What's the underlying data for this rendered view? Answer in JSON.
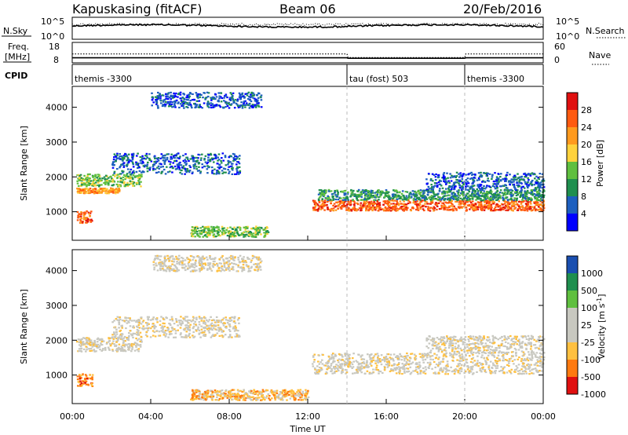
{
  "header": {
    "station": "Kapuskasing (fitACF)",
    "beam": "Beam 06",
    "date": "20/Feb/2016"
  },
  "colors": {
    "power_scale": [
      "#0000ff",
      "#1d5fbf",
      "#1f8f4f",
      "#5fbf3f",
      "#ffd23c",
      "#ff9a1e",
      "#ff5a10",
      "#e01010"
    ],
    "velocity_scale": [
      "#e01010",
      "#ff7a10",
      "#ffc040",
      "#c8c8c0",
      "#c8c8c0",
      "#5fbf3f",
      "#1f8f4f",
      "#1a4fb0"
    ],
    "ground_scatter": "#c8c8c0"
  },
  "chart_data": [
    {
      "type": "line",
      "panel": "noise",
      "left_label": "N.Sky",
      "right_label": "N.Search",
      "left_ticks": [
        "10^5",
        "10^0"
      ],
      "right_ticks": [
        "10^5",
        "10^0"
      ]
    },
    {
      "type": "line",
      "panel": "frequency",
      "left_label_top": "Freq.",
      "left_label_bottom": "[MHz]",
      "right_label": "Nave",
      "left_ticks": [
        "18",
        "8"
      ],
      "right_ticks": [
        "60",
        "0"
      ],
      "frequency_mhz": [
        {
          "t": 0,
          "v": 10.2
        },
        {
          "t": 14,
          "v": 10.2
        },
        {
          "t": 14.05,
          "v": 9.9
        },
        {
          "t": 20,
          "v": 9.9
        },
        {
          "t": 20.05,
          "v": 10.2
        },
        {
          "t": 24,
          "v": 10.2
        }
      ],
      "nave": [
        {
          "t": 0,
          "v": 28
        },
        {
          "t": 14,
          "v": 28
        },
        {
          "t": 14.05,
          "v": 14
        },
        {
          "t": 20,
          "v": 14
        },
        {
          "t": 20.05,
          "v": 28
        },
        {
          "t": 24,
          "v": 28
        }
      ]
    },
    {
      "type": "table",
      "panel": "cpid",
      "label": "CPID",
      "segments": [
        {
          "start": 0,
          "end": 14,
          "name": "themis -3300"
        },
        {
          "start": 14,
          "end": 20,
          "name": "tau (fost) 503"
        },
        {
          "start": 20,
          "end": 24,
          "name": "themis -3300"
        }
      ]
    },
    {
      "type": "heatmap",
      "panel": "power",
      "ylabel": "Slant Range [km]",
      "ylim": [
        180,
        4600
      ],
      "yticks": [
        1000,
        2000,
        3000,
        4000
      ],
      "colorbar_label": "Power [dB]",
      "colorbar_ticks": [
        "4",
        "8",
        "12",
        "16",
        "20",
        "24",
        "28"
      ],
      "scatter_bands": [
        {
          "t0": 0.2,
          "t1": 2.4,
          "r0": 1550,
          "r1": 1700,
          "level": 5
        },
        {
          "t0": 0.2,
          "t1": 3.5,
          "r0": 1750,
          "r1": 2100,
          "level": 3
        },
        {
          "t0": 2.0,
          "t1": 8.5,
          "r0": 2100,
          "r1": 2700,
          "level": 1
        },
        {
          "t0": 4.0,
          "t1": 9.6,
          "r0": 4000,
          "r1": 4450,
          "level": 1
        },
        {
          "t0": 0.2,
          "t1": 1.0,
          "r0": 700,
          "r1": 1050,
          "level": 6
        },
        {
          "t0": 12.2,
          "t1": 24,
          "r0": 1050,
          "r1": 1350,
          "level": 6
        },
        {
          "t0": 12.5,
          "t1": 24,
          "r0": 1350,
          "r1": 1650,
          "level": 2
        },
        {
          "t0": 18.0,
          "t1": 24,
          "r0": 1650,
          "r1": 2150,
          "level": 1
        },
        {
          "t0": 6.0,
          "t1": 10.0,
          "r0": 300,
          "r1": 600,
          "level": 3
        }
      ]
    },
    {
      "type": "heatmap",
      "panel": "velocity",
      "ylabel": "Slant Range [km]",
      "ylim": [
        180,
        4600
      ],
      "yticks": [
        1000,
        2000,
        3000,
        4000
      ],
      "colorbar_label": "Velocity [m s",
      "colorbar_label_sup": "-1",
      "colorbar_ticks": [
        "1000",
        "500",
        "100",
        "25",
        "-25",
        "-100",
        "-500",
        "-1000"
      ],
      "xlabel": "Time UT",
      "xticks": [
        "00:00",
        "04:00",
        "08:00",
        "12:00",
        "16:00",
        "20:00",
        "00:00"
      ],
      "xlim": [
        0,
        24
      ],
      "scatter_bands": [
        {
          "t0": 0.2,
          "t1": 3.5,
          "r0": 1700,
          "r1": 2100,
          "level": 3
        },
        {
          "t0": 2.0,
          "t1": 8.5,
          "r0": 2100,
          "r1": 2700,
          "level": 3
        },
        {
          "t0": 4.0,
          "t1": 9.6,
          "r0": 4000,
          "r1": 4450,
          "level": 3
        },
        {
          "t0": 0.2,
          "t1": 1.0,
          "r0": 700,
          "r1": 1050,
          "level": 1
        },
        {
          "t0": 12.2,
          "t1": 24,
          "r0": 1050,
          "r1": 1650,
          "level": 3
        },
        {
          "t0": 18.0,
          "t1": 24,
          "r0": 1650,
          "r1": 2150,
          "level": 3
        },
        {
          "t0": 6.0,
          "t1": 12.0,
          "r0": 300,
          "r1": 600,
          "level": 2
        }
      ]
    }
  ]
}
